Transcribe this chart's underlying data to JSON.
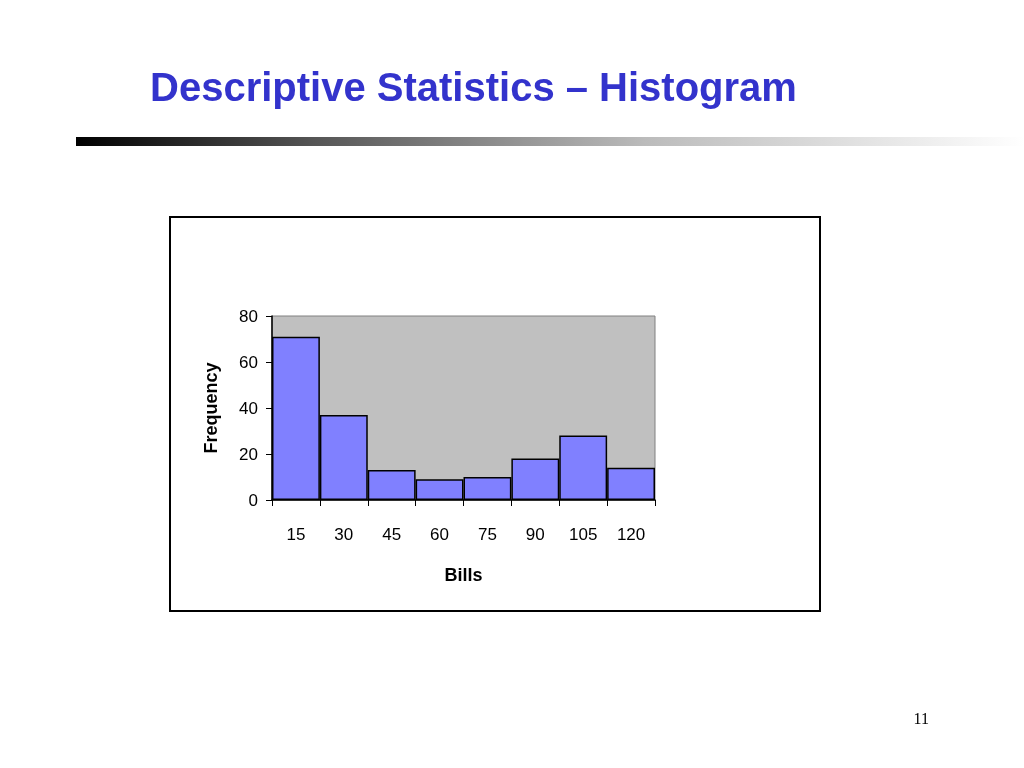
{
  "chart_data": {
    "type": "bar",
    "title": "Descriptive Statistics – Histogram",
    "categories": [
      "15",
      "30",
      "45",
      "60",
      "75",
      "90",
      "105",
      "120"
    ],
    "values": [
      71,
      37,
      13,
      9,
      10,
      18,
      28,
      14
    ],
    "color": "#8080ff",
    "xlabel": "Bills",
    "ylabel": "Frequency",
    "ylim": [
      0,
      80
    ],
    "yticks": [
      0,
      20,
      40,
      60,
      80
    ],
    "grid": false,
    "annotations": [
      "11"
    ]
  }
}
